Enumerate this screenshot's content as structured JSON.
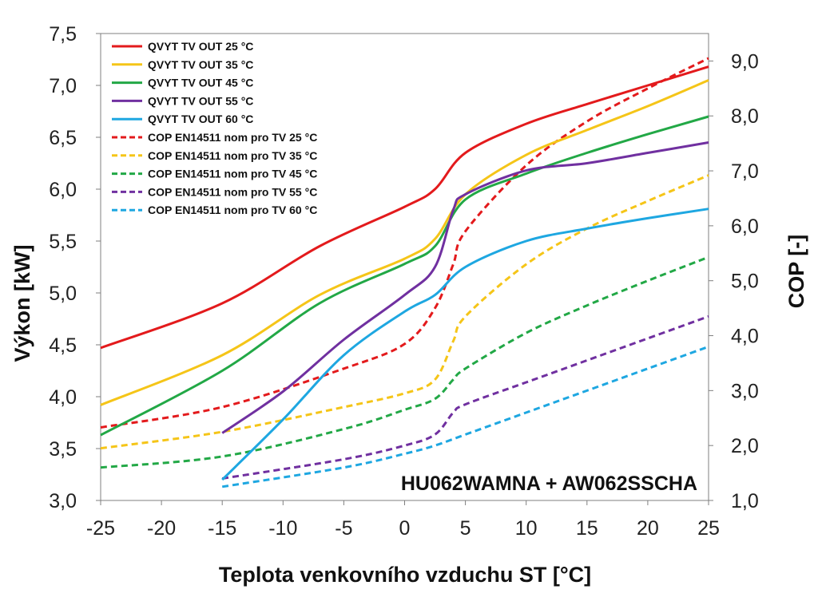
{
  "chart_data": {
    "type": "line",
    "annotation": "HU062WAMNA + AW062SSCHA",
    "xlabel": "Teplota venkovního vzduchu ST [°C]",
    "ylabel": "Výkon [kW]",
    "y2label": "COP [-]",
    "xlim": [
      -25,
      25
    ],
    "ylim": [
      3.0,
      7.5
    ],
    "y2lim": [
      1.0,
      9.5
    ],
    "grid": false,
    "legend_position": "top-left",
    "x_ticks": [
      "-25",
      "-20",
      "-15",
      "-10",
      "-5",
      "0",
      "5",
      "10",
      "15",
      "20",
      "25"
    ],
    "y_ticks": [
      "3,0",
      "3,5",
      "4,0",
      "4,5",
      "5,0",
      "5,5",
      "6,0",
      "6,5",
      "7,0",
      "7,5"
    ],
    "y2_ticks": [
      "1,0",
      "2,0",
      "3,0",
      "4,0",
      "5,0",
      "6,0",
      "7,0",
      "8,0",
      "9,0"
    ],
    "series": [
      {
        "name": "QVYT TV OUT 25 °C",
        "axis": "left",
        "style": "solid",
        "color": "#e31a1c",
        "x": [
          -25,
          -15,
          -7,
          0,
          2.5,
          5,
          10,
          15,
          20,
          25
        ],
        "y": [
          4.47,
          4.9,
          5.45,
          5.83,
          6.0,
          6.35,
          6.63,
          6.82,
          7.0,
          7.18
        ]
      },
      {
        "name": "QVYT TV OUT 35 °C",
        "axis": "left",
        "style": "solid",
        "color": "#f5c518",
        "x": [
          -25,
          -15,
          -7,
          0,
          2.5,
          5,
          10,
          15,
          20,
          25
        ],
        "y": [
          3.92,
          4.4,
          4.98,
          5.33,
          5.52,
          5.95,
          6.33,
          6.57,
          6.8,
          7.05
        ]
      },
      {
        "name": "QVYT TV OUT 45 °C",
        "axis": "left",
        "style": "solid",
        "color": "#22a846",
        "x": [
          -25,
          -15,
          -7,
          0,
          2.5,
          5,
          10,
          15,
          20,
          25
        ],
        "y": [
          3.63,
          4.25,
          4.9,
          5.28,
          5.45,
          5.9,
          6.15,
          6.35,
          6.53,
          6.7
        ]
      },
      {
        "name": "QVYT TV OUT 55 °C",
        "axis": "left",
        "style": "solid",
        "color": "#7030a0",
        "x": [
          -15,
          -10,
          -5,
          0,
          2.5,
          4,
          5,
          10,
          15,
          20,
          25
        ],
        "y": [
          3.65,
          4.05,
          4.55,
          4.98,
          5.25,
          5.8,
          5.95,
          6.18,
          6.25,
          6.35,
          6.45
        ]
      },
      {
        "name": "QVYT TV OUT 60 °C",
        "axis": "left",
        "style": "solid",
        "color": "#1ea7e1",
        "x": [
          -15,
          -10,
          -5,
          0,
          2.5,
          5,
          10,
          15,
          20,
          25
        ],
        "y": [
          3.2,
          3.78,
          4.4,
          4.82,
          4.98,
          5.25,
          5.5,
          5.62,
          5.72,
          5.81
        ]
      },
      {
        "name": "COP EN14511 nom pro TV 25 °C",
        "axis": "right",
        "style": "dashed",
        "color": "#e31a1c",
        "x": [
          -25,
          -15,
          -5,
          0,
          2.5,
          4,
          5,
          10,
          15,
          20,
          25
        ],
        "y": [
          2.33,
          2.7,
          3.4,
          3.85,
          4.5,
          5.3,
          5.9,
          7.1,
          7.9,
          8.5,
          9.05
        ]
      },
      {
        "name": "COP EN14511 nom pro TV 35 °C",
        "axis": "right",
        "style": "dashed",
        "color": "#f5c518",
        "x": [
          -25,
          -15,
          -5,
          0,
          2.5,
          4,
          5,
          10,
          15,
          20,
          25
        ],
        "y": [
          1.95,
          2.25,
          2.7,
          2.95,
          3.2,
          3.9,
          4.35,
          5.3,
          5.95,
          6.45,
          6.92
        ]
      },
      {
        "name": "COP EN14511 nom pro TV 45 °C",
        "axis": "right",
        "style": "dashed",
        "color": "#22a846",
        "x": [
          -25,
          -15,
          -5,
          0,
          2.5,
          4,
          5,
          10,
          15,
          20,
          25
        ],
        "y": [
          1.6,
          1.8,
          2.3,
          2.65,
          2.85,
          3.2,
          3.4,
          4.05,
          4.55,
          5.0,
          5.43
        ]
      },
      {
        "name": "COP EN14511 nom pro TV 55 °C",
        "axis": "right",
        "style": "dashed",
        "color": "#7030a0",
        "x": [
          -15,
          -5,
          0,
          2.5,
          4,
          5,
          10,
          15,
          20,
          25
        ],
        "y": [
          1.4,
          1.75,
          2.0,
          2.2,
          2.6,
          2.75,
          3.15,
          3.55,
          3.95,
          4.35
        ]
      },
      {
        "name": "COP EN14511 nom pro TV 60 °C",
        "axis": "right",
        "style": "dashed",
        "color": "#1ea7e1",
        "x": [
          -15,
          -5,
          0,
          2.5,
          5,
          10,
          15,
          20,
          25
        ],
        "y": [
          1.25,
          1.6,
          1.85,
          2.0,
          2.2,
          2.6,
          3.0,
          3.4,
          3.8
        ]
      }
    ]
  }
}
